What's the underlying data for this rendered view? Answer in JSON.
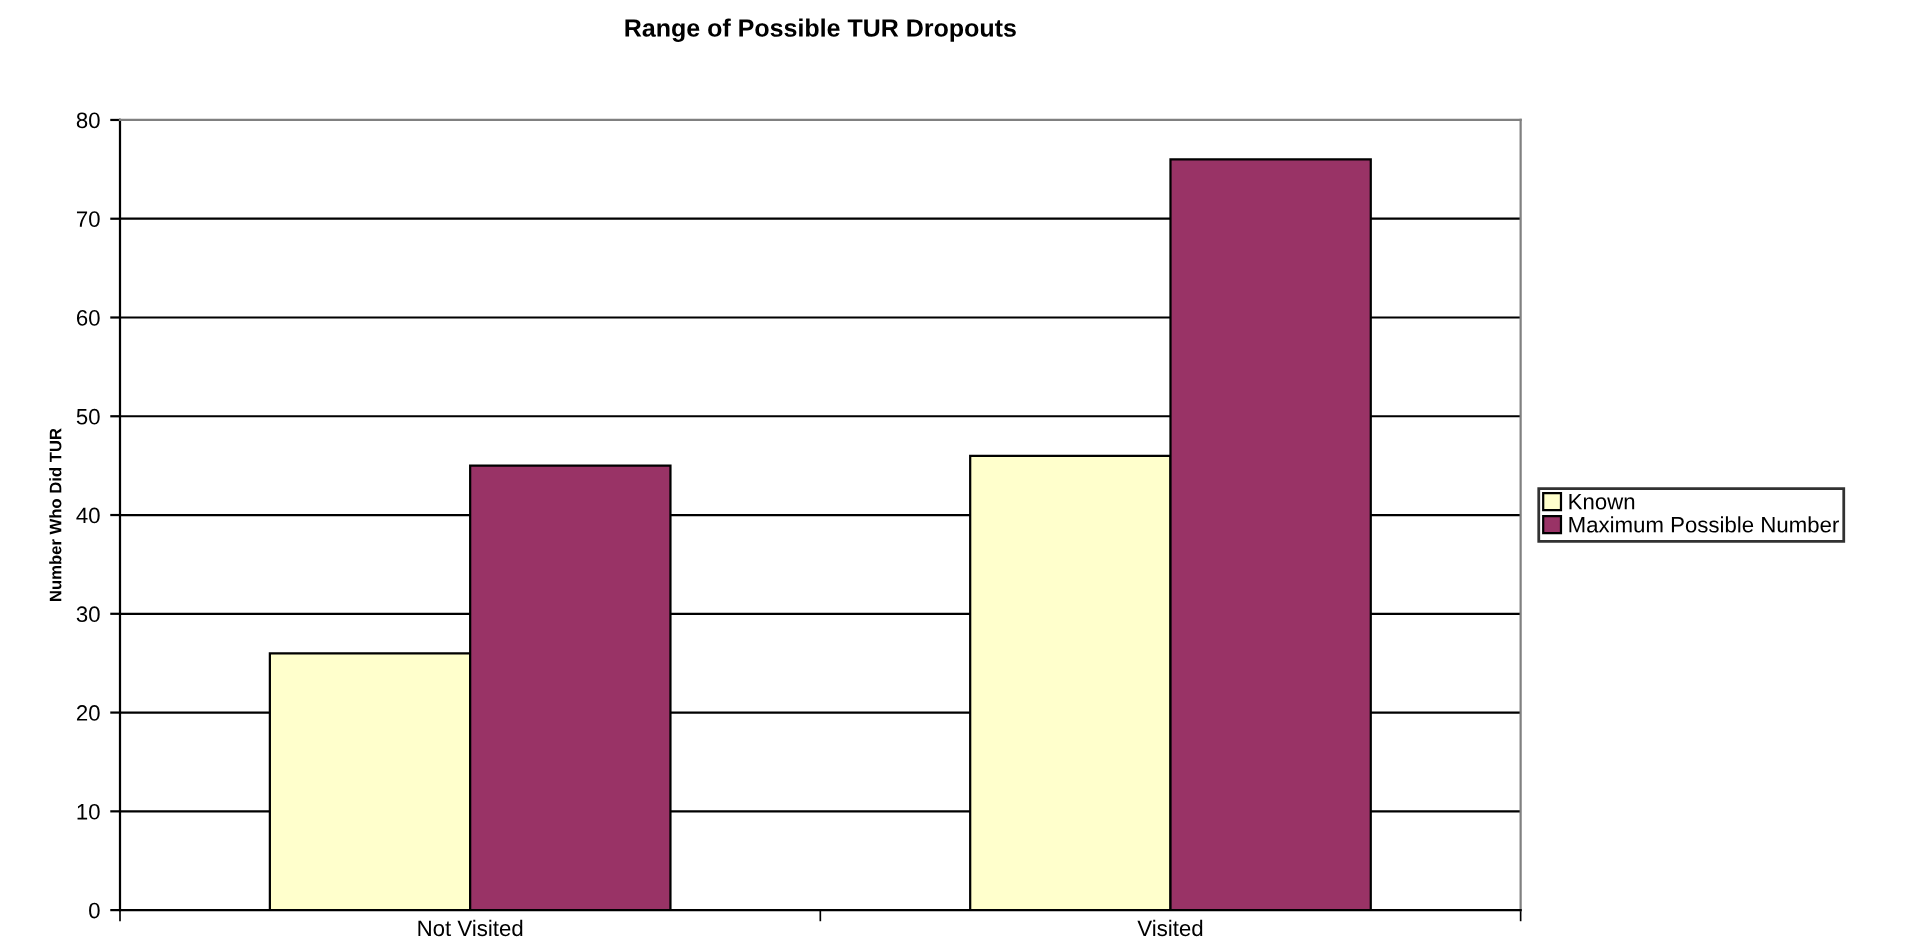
{
  "chart_data": {
    "type": "bar",
    "title": "Range of Possible TUR Dropouts",
    "ylabel": "Number Who Did TUR",
    "categories": [
      "Not Visited",
      "Visited"
    ],
    "series": [
      {
        "name": "Known",
        "color": "#ffffcc",
        "values": [
          26,
          46
        ]
      },
      {
        "name": "Maximum Possible Number",
        "color": "#993366",
        "values": [
          45,
          76
        ]
      }
    ],
    "ylim": [
      0,
      80
    ],
    "yticks": [
      0,
      10,
      20,
      30,
      40,
      50,
      60,
      70,
      80
    ],
    "grid": "y",
    "legend": "right"
  }
}
